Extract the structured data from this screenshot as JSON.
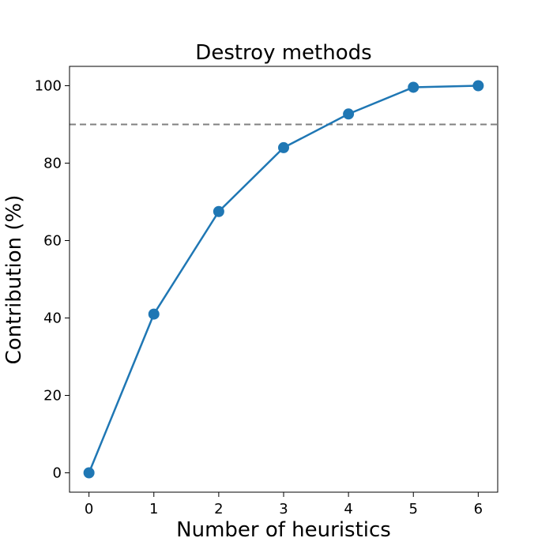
{
  "chart_data": {
    "type": "line",
    "title": "Destroy methods",
    "xlabel": "Number of heuristics",
    "ylabel": "Contribution (%)",
    "x": [
      0,
      1,
      2,
      3,
      4,
      5,
      6
    ],
    "series": [
      {
        "values": [
          0,
          41,
          67.5,
          84,
          92.7,
          99.6,
          100
        ],
        "color": "#1f77b4",
        "marker": "circle"
      }
    ],
    "reference_line": {
      "y": 90,
      "style": "dashed",
      "color": "#808080"
    },
    "xlim": [
      -0.3,
      6.3
    ],
    "ylim": [
      -5,
      105
    ],
    "xticks": [
      0,
      1,
      2,
      3,
      4,
      5,
      6
    ],
    "yticks": [
      0,
      20,
      40,
      60,
      80,
      100
    ],
    "grid": false,
    "legend": "none"
  }
}
